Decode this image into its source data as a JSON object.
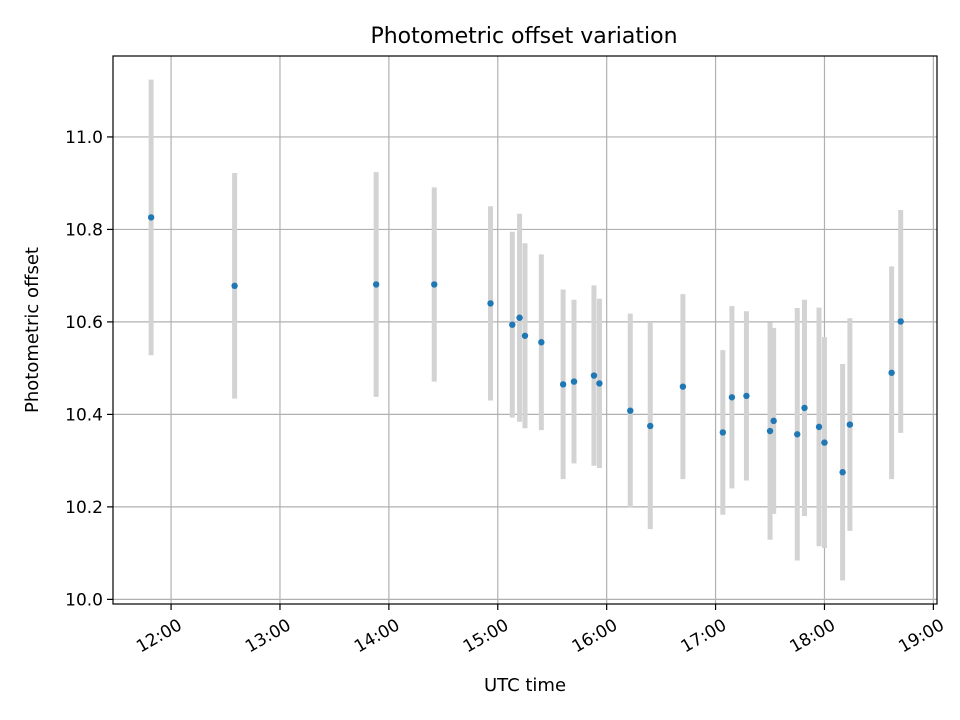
{
  "chart_data": {
    "type": "scatter",
    "title": "Photometric offset variation",
    "xlabel": "UTC time",
    "ylabel": "Photometric offset",
    "x_axis": "time",
    "xlim": [
      "11:28",
      "19:02"
    ],
    "ylim": [
      9.99,
      11.175
    ],
    "x_ticks": [
      "12:00",
      "13:00",
      "14:00",
      "15:00",
      "16:00",
      "17:00",
      "18:00",
      "19:00"
    ],
    "y_ticks": [
      10.0,
      10.2,
      10.4,
      10.6,
      10.8,
      11.0
    ],
    "grid": true,
    "colors": {
      "point": "#1f77b4",
      "errorbar": "#d3d3d3",
      "grid": "#b0b0b0"
    },
    "points": [
      {
        "time": "11:49",
        "y": 10.826,
        "err": 0.298
      },
      {
        "time": "12:35",
        "y": 10.678,
        "err": 0.244
      },
      {
        "time": "13:53",
        "y": 10.681,
        "err": 0.243
      },
      {
        "time": "14:25",
        "y": 10.681,
        "err": 0.21
      },
      {
        "time": "14:56",
        "y": 10.64,
        "err": 0.21
      },
      {
        "time": "15:08",
        "y": 10.594,
        "err": 0.201
      },
      {
        "time": "15:12",
        "y": 10.609,
        "err": 0.225
      },
      {
        "time": "15:15",
        "y": 10.57,
        "err": 0.2
      },
      {
        "time": "15:24",
        "y": 10.556,
        "err": 0.19
      },
      {
        "time": "15:36",
        "y": 10.465,
        "err": 0.205
      },
      {
        "time": "15:42",
        "y": 10.471,
        "err": 0.177
      },
      {
        "time": "15:53",
        "y": 10.484,
        "err": 0.195
      },
      {
        "time": "15:56",
        "y": 10.467,
        "err": 0.183
      },
      {
        "time": "16:13",
        "y": 10.408,
        "err": 0.21
      },
      {
        "time": "16:24",
        "y": 10.375,
        "err": 0.223
      },
      {
        "time": "16:42",
        "y": 10.46,
        "err": 0.2
      },
      {
        "time": "17:04",
        "y": 10.361,
        "err": 0.178
      },
      {
        "time": "17:09",
        "y": 10.437,
        "err": 0.197
      },
      {
        "time": "17:17",
        "y": 10.44,
        "err": 0.183
      },
      {
        "time": "17:30",
        "y": 10.364,
        "err": 0.235
      },
      {
        "time": "17:32",
        "y": 10.386,
        "err": 0.201
      },
      {
        "time": "17:45",
        "y": 10.357,
        "err": 0.273
      },
      {
        "time": "17:49",
        "y": 10.414,
        "err": 0.234
      },
      {
        "time": "17:57",
        "y": 10.373,
        "err": 0.258
      },
      {
        "time": "18:00",
        "y": 10.339,
        "err": 0.228
      },
      {
        "time": "18:10",
        "y": 10.275,
        "err": 0.234
      },
      {
        "time": "18:14",
        "y": 10.378,
        "err": 0.23
      },
      {
        "time": "18:37",
        "y": 10.49,
        "err": 0.23
      },
      {
        "time": "18:42",
        "y": 10.601,
        "err": 0.241
      }
    ]
  }
}
